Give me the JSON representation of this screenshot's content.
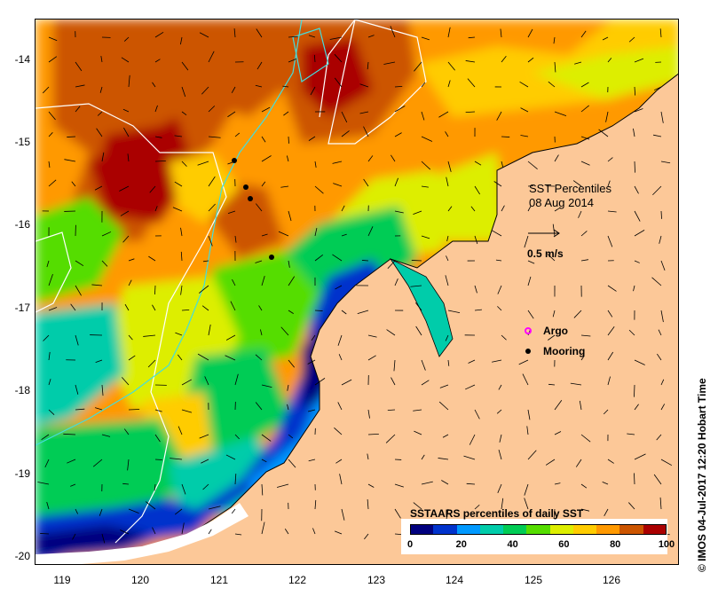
{
  "map": {
    "y_ticks": [
      "-14",
      "-15",
      "-16",
      "-17",
      "-18",
      "-19",
      "-20"
    ],
    "x_ticks": [
      "119",
      "120",
      "121",
      "122",
      "123",
      "124",
      "125",
      "126"
    ],
    "title_line1": "SST Percentiles",
    "title_line2": "08 Aug 2014",
    "vector_scale": "0.5 m/s",
    "legend_argo": "Argo",
    "legend_mooring": "Mooring",
    "credit": "IMOS 04-Jul-2017 12:20 Hobart Time",
    "copyright_symbol": "©",
    "colorbar_title": "SSTAARS percentiles of daily SST",
    "colorbar_ticks": [
      "0",
      "20",
      "40",
      "60",
      "80",
      "100"
    ],
    "colorbar_colors": [
      "#00007f",
      "#0033cc",
      "#0099ff",
      "#00ccaa",
      "#00cc55",
      "#55dd00",
      "#ddee00",
      "#ffcc00",
      "#ff9900",
      "#cc5500",
      "#aa0000"
    ],
    "land_color": "#fcc898",
    "argo_color": "#ff00ff",
    "mooring_color": "#000000"
  }
}
